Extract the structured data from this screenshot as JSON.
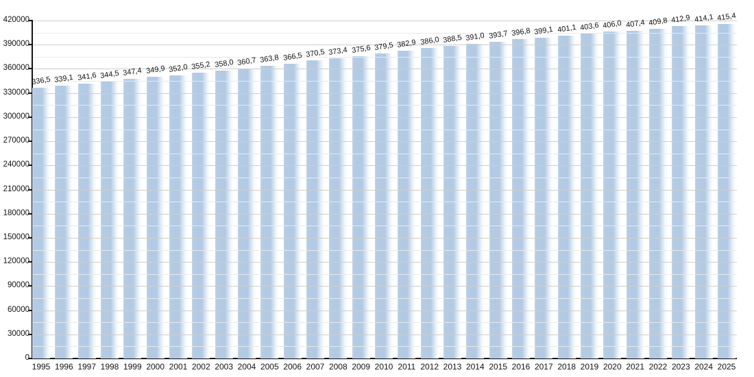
{
  "chart_data": {
    "type": "bar",
    "title": "",
    "xlabel": "",
    "ylabel": "",
    "categories": [
      "1995",
      "1996",
      "1997",
      "1998",
      "1999",
      "2000",
      "2001",
      "2002",
      "2003",
      "2004",
      "2005",
      "2006",
      "2007",
      "2008",
      "2009",
      "2010",
      "2011",
      "2012",
      "2013",
      "2014",
      "2015",
      "2016",
      "2017",
      "2018",
      "2019",
      "2020",
      "2021",
      "2022",
      "2023",
      "2024",
      "2025"
    ],
    "values": [
      336.5,
      339.1,
      341.6,
      344.5,
      347.4,
      349.9,
      352.0,
      355.2,
      358.0,
      360.7,
      363.8,
      366.5,
      370.5,
      373.4,
      375.6,
      379.5,
      382.9,
      386.0,
      388.5,
      391.0,
      393.7,
      396.8,
      399.1,
      401.1,
      403.6,
      406.0,
      407.4,
      409.8,
      412.9,
      414.1,
      415.4
    ],
    "values_unit": "thousands",
    "value_labels": [
      "336,5",
      "339,1",
      "341,6",
      "344,5",
      "347,4",
      "349,9",
      "352,0",
      "355,2",
      "358,0",
      "360,7",
      "363,8",
      "366,5",
      "370,5",
      "373,4",
      "375,6",
      "379,5",
      "382,9",
      "386,0",
      "388,5",
      "391,0",
      "393,7",
      "396,8",
      "399,1",
      "401,1",
      "403,6",
      "406,0",
      "407,4",
      "409,8",
      "412,9",
      "414,1",
      "415,4"
    ],
    "ylim": [
      0,
      420000
    ],
    "y_major_step": 30000,
    "y_minor_step": 15000,
    "y_tick_labels": [
      "0",
      "30000",
      "60000",
      "90000",
      "120000",
      "150000",
      "180000",
      "210000",
      "240000",
      "270000",
      "300000",
      "330000",
      "360000",
      "390000",
      "420000"
    ],
    "grid": "on",
    "legend": "none",
    "value_label_rotation_deg": -9,
    "colors": {
      "bar_fill": "#b3cae3",
      "bar_highlight": "#fdfeff",
      "gridline_major": "#cdcdcd",
      "gridline_minor": "#e9e9e9",
      "axis": "#111111",
      "text": "#111111",
      "background": "#ffffff"
    }
  }
}
